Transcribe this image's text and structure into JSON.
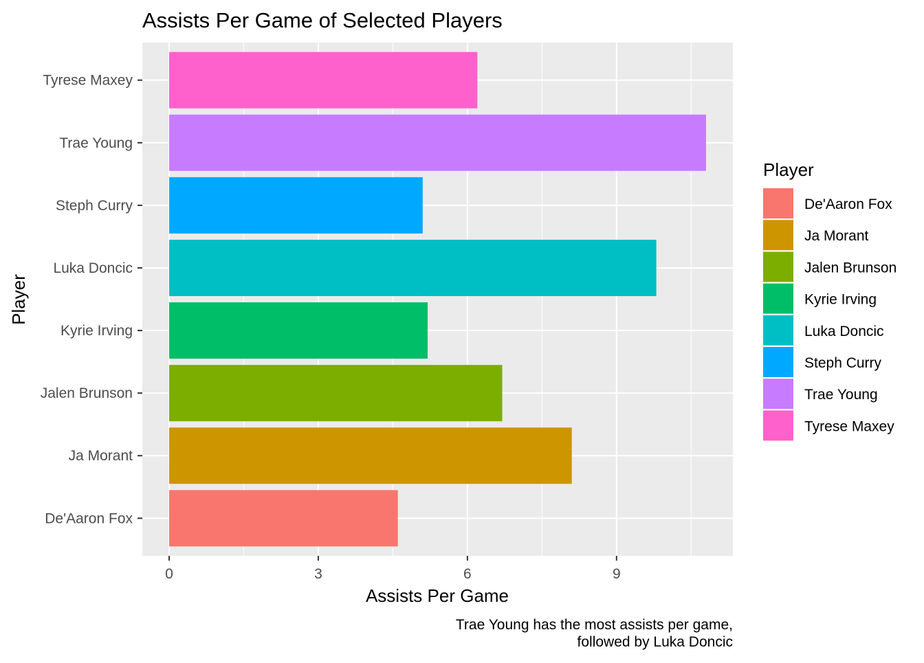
{
  "chart_data": {
    "type": "bar",
    "orientation": "horizontal",
    "title": "Assists Per Game of Selected Players",
    "xlabel": "Assists Per Game",
    "ylabel": "Player",
    "caption": "Trae Young has the most assists per game,\nfollowed by Luka Doncic",
    "categories": [
      "De'Aaron Fox",
      "Ja Morant",
      "Jalen Brunson",
      "Kyrie Irving",
      "Luka Doncic",
      "Steph Curry",
      "Trae Young",
      "Tyrese Maxey"
    ],
    "values": [
      4.6,
      8.1,
      6.7,
      5.2,
      9.8,
      5.1,
      10.8,
      6.2
    ],
    "colors": [
      "#F8766D",
      "#CD9600",
      "#7CAE00",
      "#00BE67",
      "#00BFC4",
      "#00A9FF",
      "#C77CFF",
      "#FF61CC"
    ],
    "xlim": [
      -0.54,
      11.34
    ],
    "x_ticks": [
      0,
      3,
      6,
      9
    ],
    "grid": true,
    "legend": {
      "title": "Player",
      "position": "right",
      "items": [
        "De'Aaron Fox",
        "Ja Morant",
        "Jalen Brunson",
        "Kyrie Irving",
        "Luka Doncic",
        "Steph Curry",
        "Trae Young",
        "Tyrese Maxey"
      ]
    }
  }
}
